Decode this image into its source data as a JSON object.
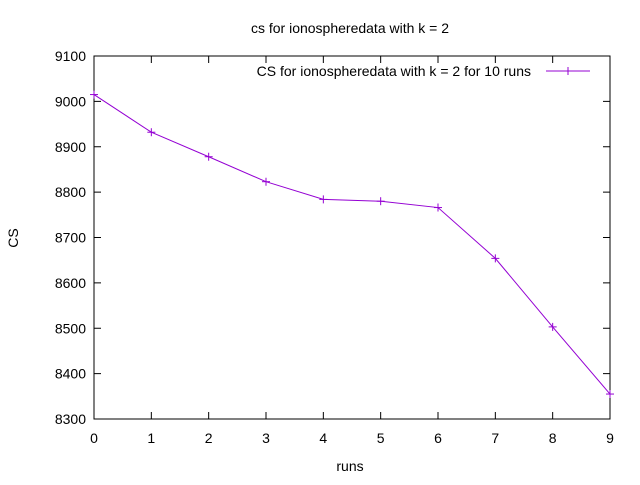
{
  "chart_data": {
    "type": "line",
    "title": "cs for ionospheredata with k = 2",
    "xlabel": "runs",
    "ylabel": "CS",
    "xlim": [
      0,
      9
    ],
    "ylim": [
      8300,
      9100
    ],
    "xticks": [
      0,
      1,
      2,
      3,
      4,
      5,
      6,
      7,
      8,
      9
    ],
    "yticks": [
      8300,
      8400,
      8500,
      8600,
      8700,
      8800,
      8900,
      9000,
      9100
    ],
    "grid": false,
    "legend_position": "top-right",
    "series": [
      {
        "name": "CS for ionospheredata with k = 2 for 10 runs",
        "color": "#9400d3",
        "marker": "plus",
        "x": [
          0,
          1,
          2,
          3,
          4,
          5,
          6,
          7,
          8,
          9
        ],
        "y": [
          9015,
          8932,
          8878,
          8823,
          8784,
          8780,
          8766,
          8654,
          8503,
          8355
        ]
      }
    ]
  }
}
